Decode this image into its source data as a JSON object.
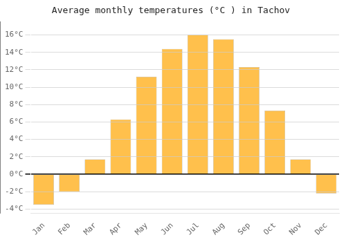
{
  "chart_data": {
    "type": "bar",
    "title": "Average monthly temperatures (°C ) in Tachov",
    "categories": [
      "Jan",
      "Feb",
      "Mar",
      "Apr",
      "May",
      "Jun",
      "Jul",
      "Aug",
      "Sep",
      "Oct",
      "Nov",
      "Dec"
    ],
    "values": [
      -3.5,
      -2.0,
      1.7,
      6.3,
      11.2,
      14.4,
      16.0,
      15.5,
      12.3,
      7.3,
      1.7,
      -2.2
    ],
    "color": "#FFC04C",
    "ylim": [
      -4.5,
      17.5
    ],
    "yticks": [
      {
        "value": -4,
        "label": "-4°C"
      },
      {
        "value": -2,
        "label": "-2°C"
      },
      {
        "value": 0,
        "label": "0°C"
      },
      {
        "value": 2,
        "label": "2°C"
      },
      {
        "value": 4,
        "label": "4°C"
      },
      {
        "value": 6,
        "label": "6°C"
      },
      {
        "value": 8,
        "label": "8°C"
      },
      {
        "value": 10,
        "label": "10°C"
      },
      {
        "value": 12,
        "label": "12°C"
      },
      {
        "value": 14,
        "label": "14°C"
      },
      {
        "value": 16,
        "label": "16°C"
      }
    ],
    "grid": true
  }
}
